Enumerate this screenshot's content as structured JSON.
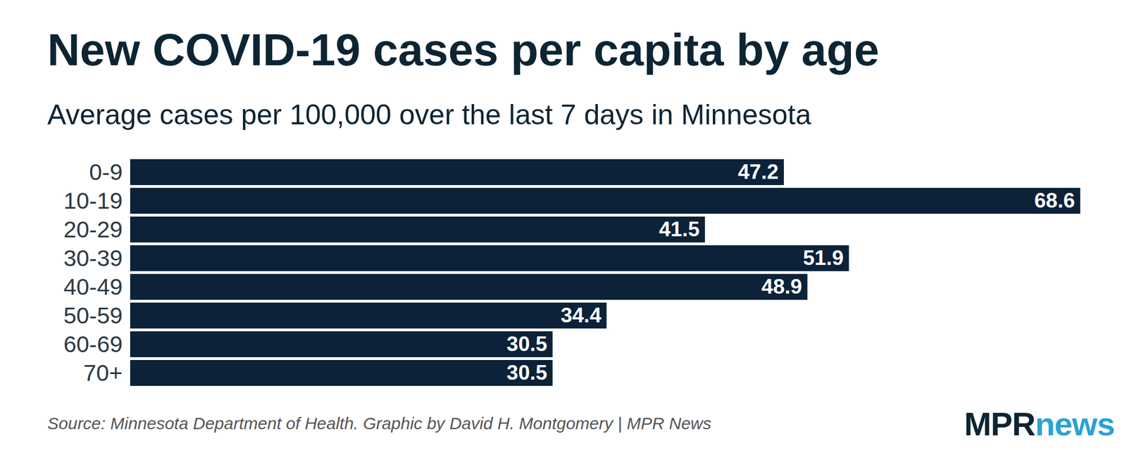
{
  "chart_data": {
    "type": "bar",
    "orientation": "horizontal",
    "title": "New COVID-19 cases per capita by age",
    "subtitle": "Average cases per 100,000 over the last 7 days in Minnesota",
    "caption": "Source: Minnesota Department of Health. Graphic by David H. Montgomery | MPR News",
    "logo": [
      "MPR",
      "news"
    ],
    "categories": [
      "0-9",
      "10-19",
      "20-29",
      "30-39",
      "40-49",
      "50-59",
      "60-69",
      "70+"
    ],
    "values": [
      47.2,
      68.6,
      41.5,
      51.9,
      48.9,
      34.4,
      30.5,
      30.5
    ],
    "color": "#0b2239",
    "xlim": [
      0,
      68.6
    ],
    "grid": false,
    "data_labels": true,
    "tick_labels": "y"
  }
}
